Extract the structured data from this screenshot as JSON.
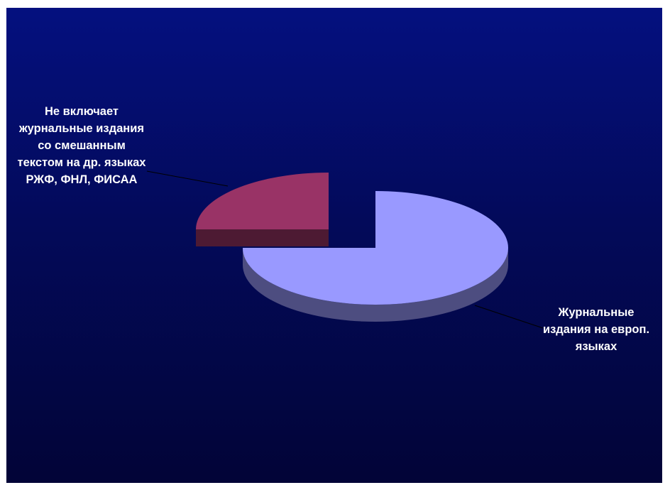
{
  "chart_data": {
    "type": "pie",
    "style": "3d-exploded",
    "slices": [
      {
        "label": "Журнальные издания на европ. языках",
        "value": 75,
        "color": "#9999ff",
        "side_color": "#4d4d80"
      },
      {
        "label": "Не включает журнальные издания со смешанным текстом на др. языках РЖФ, ФНЛ, ФИСАА",
        "value": 25,
        "color": "#993366",
        "side_color": "#4d1a33"
      }
    ],
    "title": "",
    "legend": "none"
  },
  "colors": {
    "background_top": "#04107f",
    "background_bottom": "#020437",
    "leader_line": "#000000",
    "label_text": "#ffffff"
  }
}
